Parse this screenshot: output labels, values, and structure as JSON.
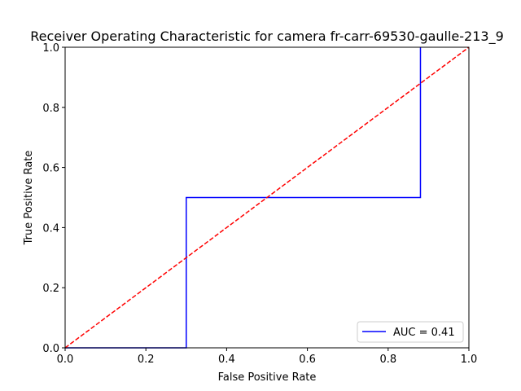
{
  "chart_data": {
    "type": "line",
    "title": "Receiver Operating Characteristic for camera fr-carr-69530-gaulle-213_9",
    "xlabel": "False Positive Rate",
    "ylabel": "True Positive Rate",
    "xlim": [
      0,
      1
    ],
    "ylim": [
      0,
      1
    ],
    "x_ticks": [
      "0.0",
      "0.2",
      "0.4",
      "0.6",
      "0.8",
      "1.0"
    ],
    "y_ticks": [
      "0.0",
      "0.2",
      "0.4",
      "0.6",
      "0.8",
      "1.0"
    ],
    "grid": false,
    "legend_position": "lower-right",
    "series": [
      {
        "name": "AUC = 0.41",
        "color": "#0000ff",
        "style": "solid",
        "x": [
          0.0,
          0.0,
          0.3,
          0.3,
          0.88,
          0.88
        ],
        "y": [
          0.0,
          0.0,
          0.0,
          0.5,
          0.5,
          1.0
        ]
      },
      {
        "color": "#ff0000",
        "style": "dashed",
        "x": [
          0.0,
          1.0
        ],
        "y": [
          0.0,
          1.0
        ]
      }
    ]
  }
}
